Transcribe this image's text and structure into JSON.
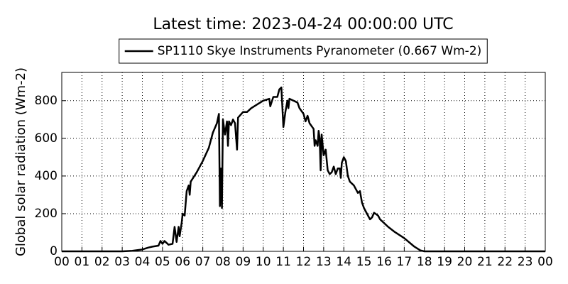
{
  "chart_data": {
    "type": "line",
    "title": "Latest time: 2023-04-24 00:00:00 UTC",
    "y_label": "Global solar radiation (Wm-2)",
    "x": [
      0,
      3.0,
      3.5,
      4.0,
      4.3,
      4.5,
      4.8,
      4.9,
      5.0,
      5.1,
      5.3,
      5.5,
      5.6,
      5.7,
      5.8,
      5.85,
      5.95,
      6.0,
      6.1,
      6.2,
      6.3,
      6.35,
      6.4,
      6.7,
      7.0,
      7.3,
      7.5,
      7.7,
      7.8,
      7.85,
      7.9,
      7.95,
      8.0,
      8.1,
      8.2,
      8.25,
      8.3,
      8.4,
      8.5,
      8.6,
      8.7,
      8.75,
      9.0,
      9.2,
      9.4,
      9.7,
      10.0,
      10.3,
      10.35,
      10.5,
      10.7,
      10.8,
      10.9,
      11.0,
      11.1,
      11.2,
      11.25,
      11.3,
      11.5,
      11.7,
      11.8,
      12.0,
      12.1,
      12.2,
      12.3,
      12.5,
      12.55,
      12.6,
      12.7,
      12.75,
      12.8,
      12.85,
      12.9,
      13.0,
      13.1,
      13.2,
      13.3,
      13.4,
      13.5,
      13.6,
      13.7,
      13.8,
      13.85,
      13.9,
      14.0,
      14.1,
      14.2,
      14.3,
      14.5,
      14.7,
      14.8,
      14.9,
      15.0,
      15.2,
      15.3,
      15.4,
      15.5,
      15.7,
      15.8,
      16.0,
      16.2,
      16.5,
      17.0,
      17.5,
      17.8,
      18.0,
      24
    ],
    "series": [
      {
        "name": "SP1110 Skye Instruments Pyranometer (0.667 Wm-2)",
        "color": "#000000",
        "values": [
          0,
          0,
          3,
          10,
          20,
          25,
          30,
          55,
          40,
          55,
          35,
          40,
          130,
          50,
          130,
          80,
          150,
          200,
          190,
          320,
          350,
          300,
          370,
          420,
          480,
          550,
          630,
          680,
          730,
          240,
          440,
          230,
          700,
          620,
          690,
          560,
          690,
          670,
          700,
          680,
          540,
          710,
          740,
          740,
          760,
          780,
          800,
          810,
          770,
          820,
          820,
          860,
          870,
          660,
          740,
          800,
          760,
          810,
          800,
          790,
          760,
          730,
          690,
          720,
          680,
          650,
          560,
          590,
          560,
          640,
          600,
          430,
          620,
          510,
          540,
          430,
          410,
          420,
          450,
          410,
          440,
          440,
          390,
          470,
          500,
          480,
          400,
          370,
          350,
          310,
          320,
          260,
          230,
          190,
          170,
          180,
          205,
          190,
          170,
          150,
          130,
          105,
          70,
          25,
          5,
          0,
          0
        ]
      }
    ],
    "xlim": [
      0,
      24
    ],
    "ylim": [
      0,
      950
    ],
    "xticks": [
      {
        "value": 0,
        "label": "00"
      },
      {
        "value": 1,
        "label": "01"
      },
      {
        "value": 2,
        "label": "02"
      },
      {
        "value": 3,
        "label": "03"
      },
      {
        "value": 4,
        "label": "04"
      },
      {
        "value": 5,
        "label": "05"
      },
      {
        "value": 6,
        "label": "06"
      },
      {
        "value": 7,
        "label": "07"
      },
      {
        "value": 8,
        "label": "08"
      },
      {
        "value": 9,
        "label": "09"
      },
      {
        "value": 10,
        "label": "10"
      },
      {
        "value": 11,
        "label": "11"
      },
      {
        "value": 12,
        "label": "12"
      },
      {
        "value": 13,
        "label": "13"
      },
      {
        "value": 14,
        "label": "14"
      },
      {
        "value": 15,
        "label": "15"
      },
      {
        "value": 16,
        "label": "16"
      },
      {
        "value": 17,
        "label": "17"
      },
      {
        "value": 18,
        "label": "18"
      },
      {
        "value": 19,
        "label": "19"
      },
      {
        "value": 20,
        "label": "20"
      },
      {
        "value": 21,
        "label": "21"
      },
      {
        "value": 22,
        "label": "22"
      },
      {
        "value": 23,
        "label": "23"
      },
      {
        "value": 24,
        "label": "00"
      }
    ],
    "yticks": [
      0,
      200,
      400,
      600,
      800
    ],
    "grid": true,
    "legend": "top"
  }
}
